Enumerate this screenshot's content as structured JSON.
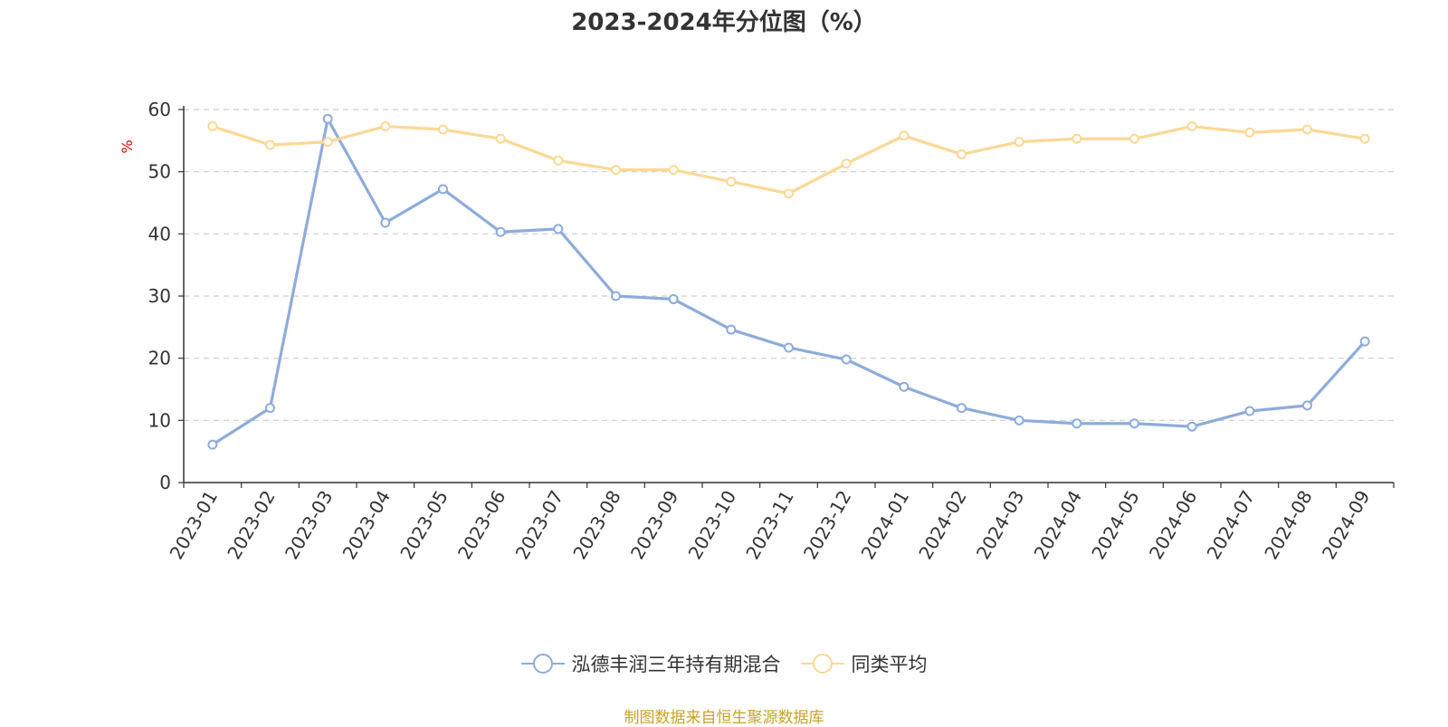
{
  "chart_data": {
    "type": "line",
    "title": "2023-2024年分位图（%）",
    "ylabel": "%",
    "ylim": [
      0,
      60
    ],
    "yticks": [
      "0",
      "10",
      "20",
      "30",
      "40",
      "50",
      "60"
    ],
    "grid": true,
    "legend_position": "bottom",
    "categories": [
      "2023-01",
      "2023-02",
      "2023-03",
      "2023-04",
      "2023-05",
      "2023-06",
      "2023-07",
      "2023-08",
      "2023-09",
      "2023-10",
      "2023-11",
      "2023-12",
      "2024-01",
      "2024-02",
      "2024-03",
      "2024-04",
      "2024-05",
      "2024-06",
      "2024-07",
      "2024-08",
      "2024-09"
    ],
    "series": [
      {
        "name": "泓德丰润三年持有期混合",
        "color": "#8eacda",
        "values": [
          6.1,
          12.0,
          58.5,
          41.8,
          47.2,
          40.3,
          40.8,
          30.0,
          29.5,
          24.6,
          21.7,
          19.8,
          15.4,
          12.0,
          10.0,
          9.5,
          9.5,
          9.0,
          11.5,
          12.4,
          22.7
        ]
      },
      {
        "name": "同类平均",
        "color": "#fcd895",
        "values": [
          57.3,
          54.3,
          54.8,
          57.3,
          56.8,
          55.3,
          51.8,
          50.3,
          50.3,
          48.4,
          46.5,
          51.3,
          55.8,
          52.8,
          54.8,
          55.3,
          55.3,
          57.3,
          56.3,
          56.8,
          55.3
        ]
      }
    ]
  },
  "source_note": "制图数据来自恒生聚源数据库"
}
